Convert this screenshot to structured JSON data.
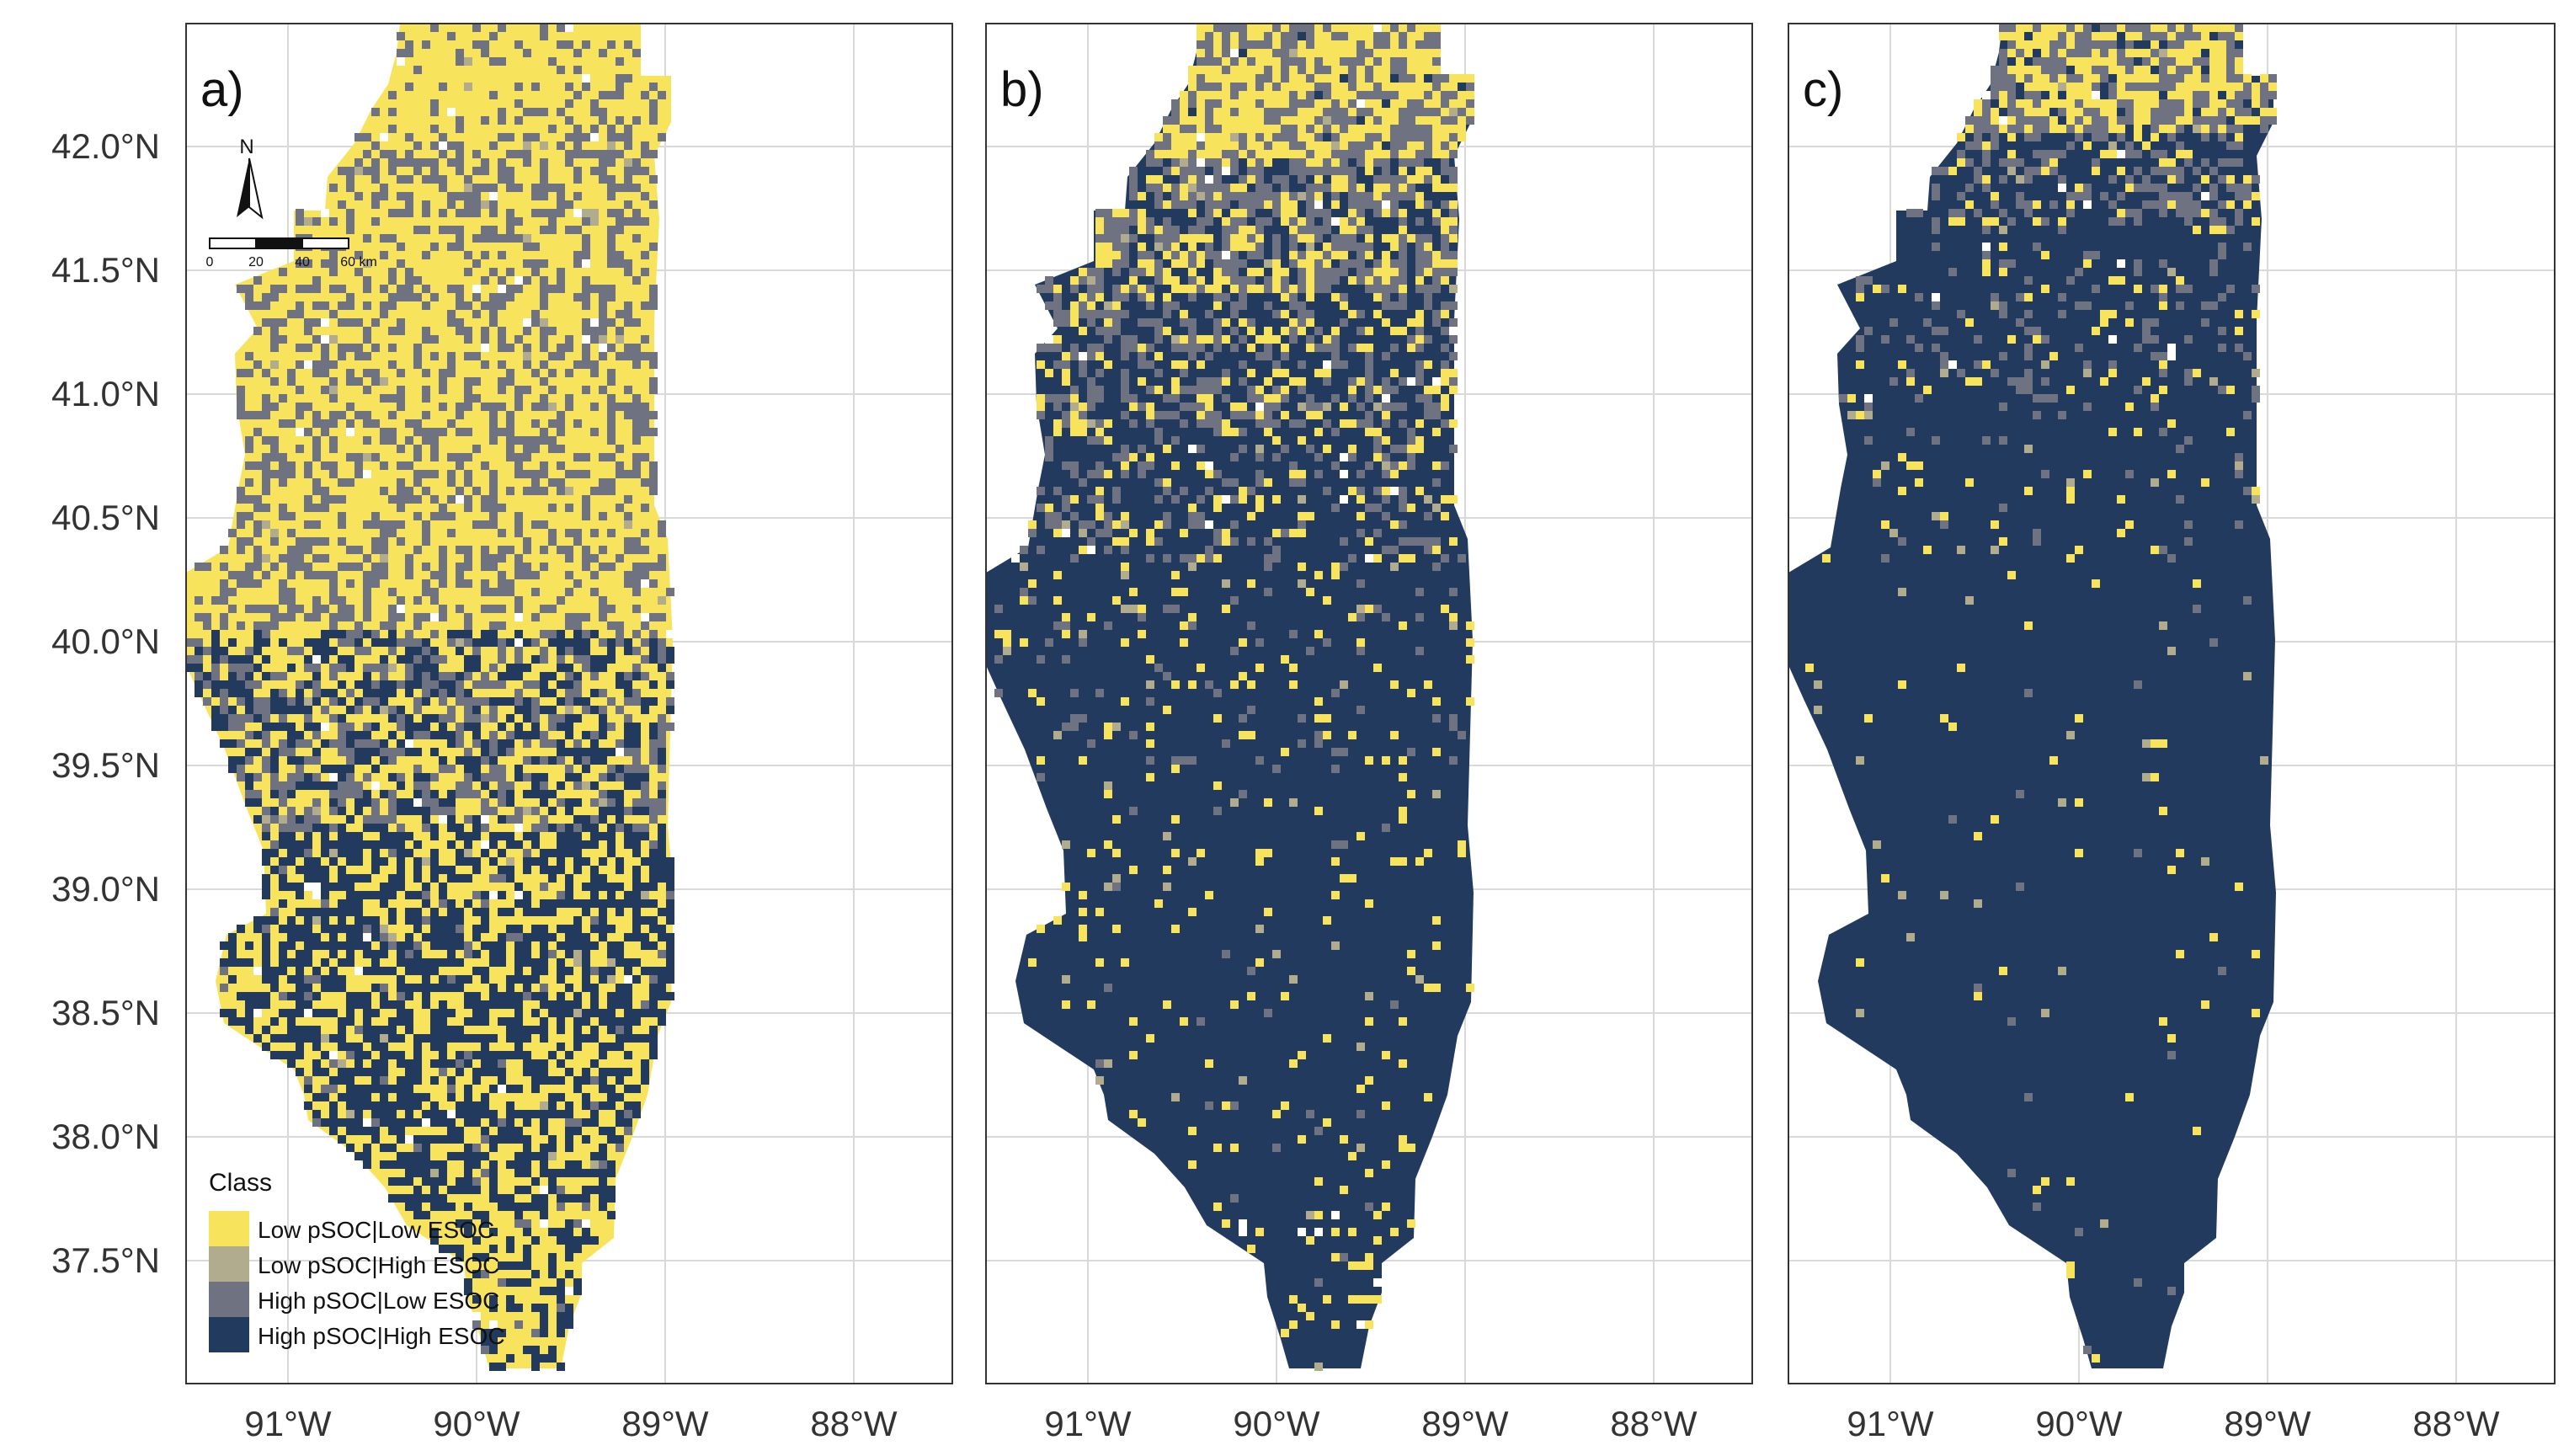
{
  "panels": [
    {
      "label": "a)",
      "variant": "a"
    },
    {
      "label": "b)",
      "variant": "b"
    },
    {
      "label": "c)",
      "variant": "c"
    }
  ],
  "y_ticks": [
    "42.0°N",
    "41.5°N",
    "41.0°N",
    "40.5°N",
    "40.0°N",
    "39.5°N",
    "39.0°N",
    "38.5°N",
    "38.0°N",
    "37.5°N"
  ],
  "x_ticks": [
    "91°W",
    "90°W",
    "89°W",
    "88°W"
  ],
  "north_arrow": {
    "label": "N"
  },
  "scale_bar": {
    "labels": [
      "0",
      "20",
      "40",
      "60 km"
    ]
  },
  "legend": {
    "title": "Class",
    "items": [
      {
        "label": "Low pSOC|Low ESOC",
        "color": "#f7e35c"
      },
      {
        "label": "Low pSOC|High ESOC",
        "color": "#b2ac8e"
      },
      {
        "label": "High pSOC|Low ESOC",
        "color": "#6e7281"
      },
      {
        "label": "High pSOC|High ESOC",
        "color": "#223a5e"
      }
    ]
  },
  "colors": {
    "low_low": "#f7e35c",
    "low_high": "#b2ac8e",
    "high_low": "#6e7281",
    "high_high": "#223a5e",
    "grid": "#d9d9d9",
    "panel_border": "#333333"
  }
}
